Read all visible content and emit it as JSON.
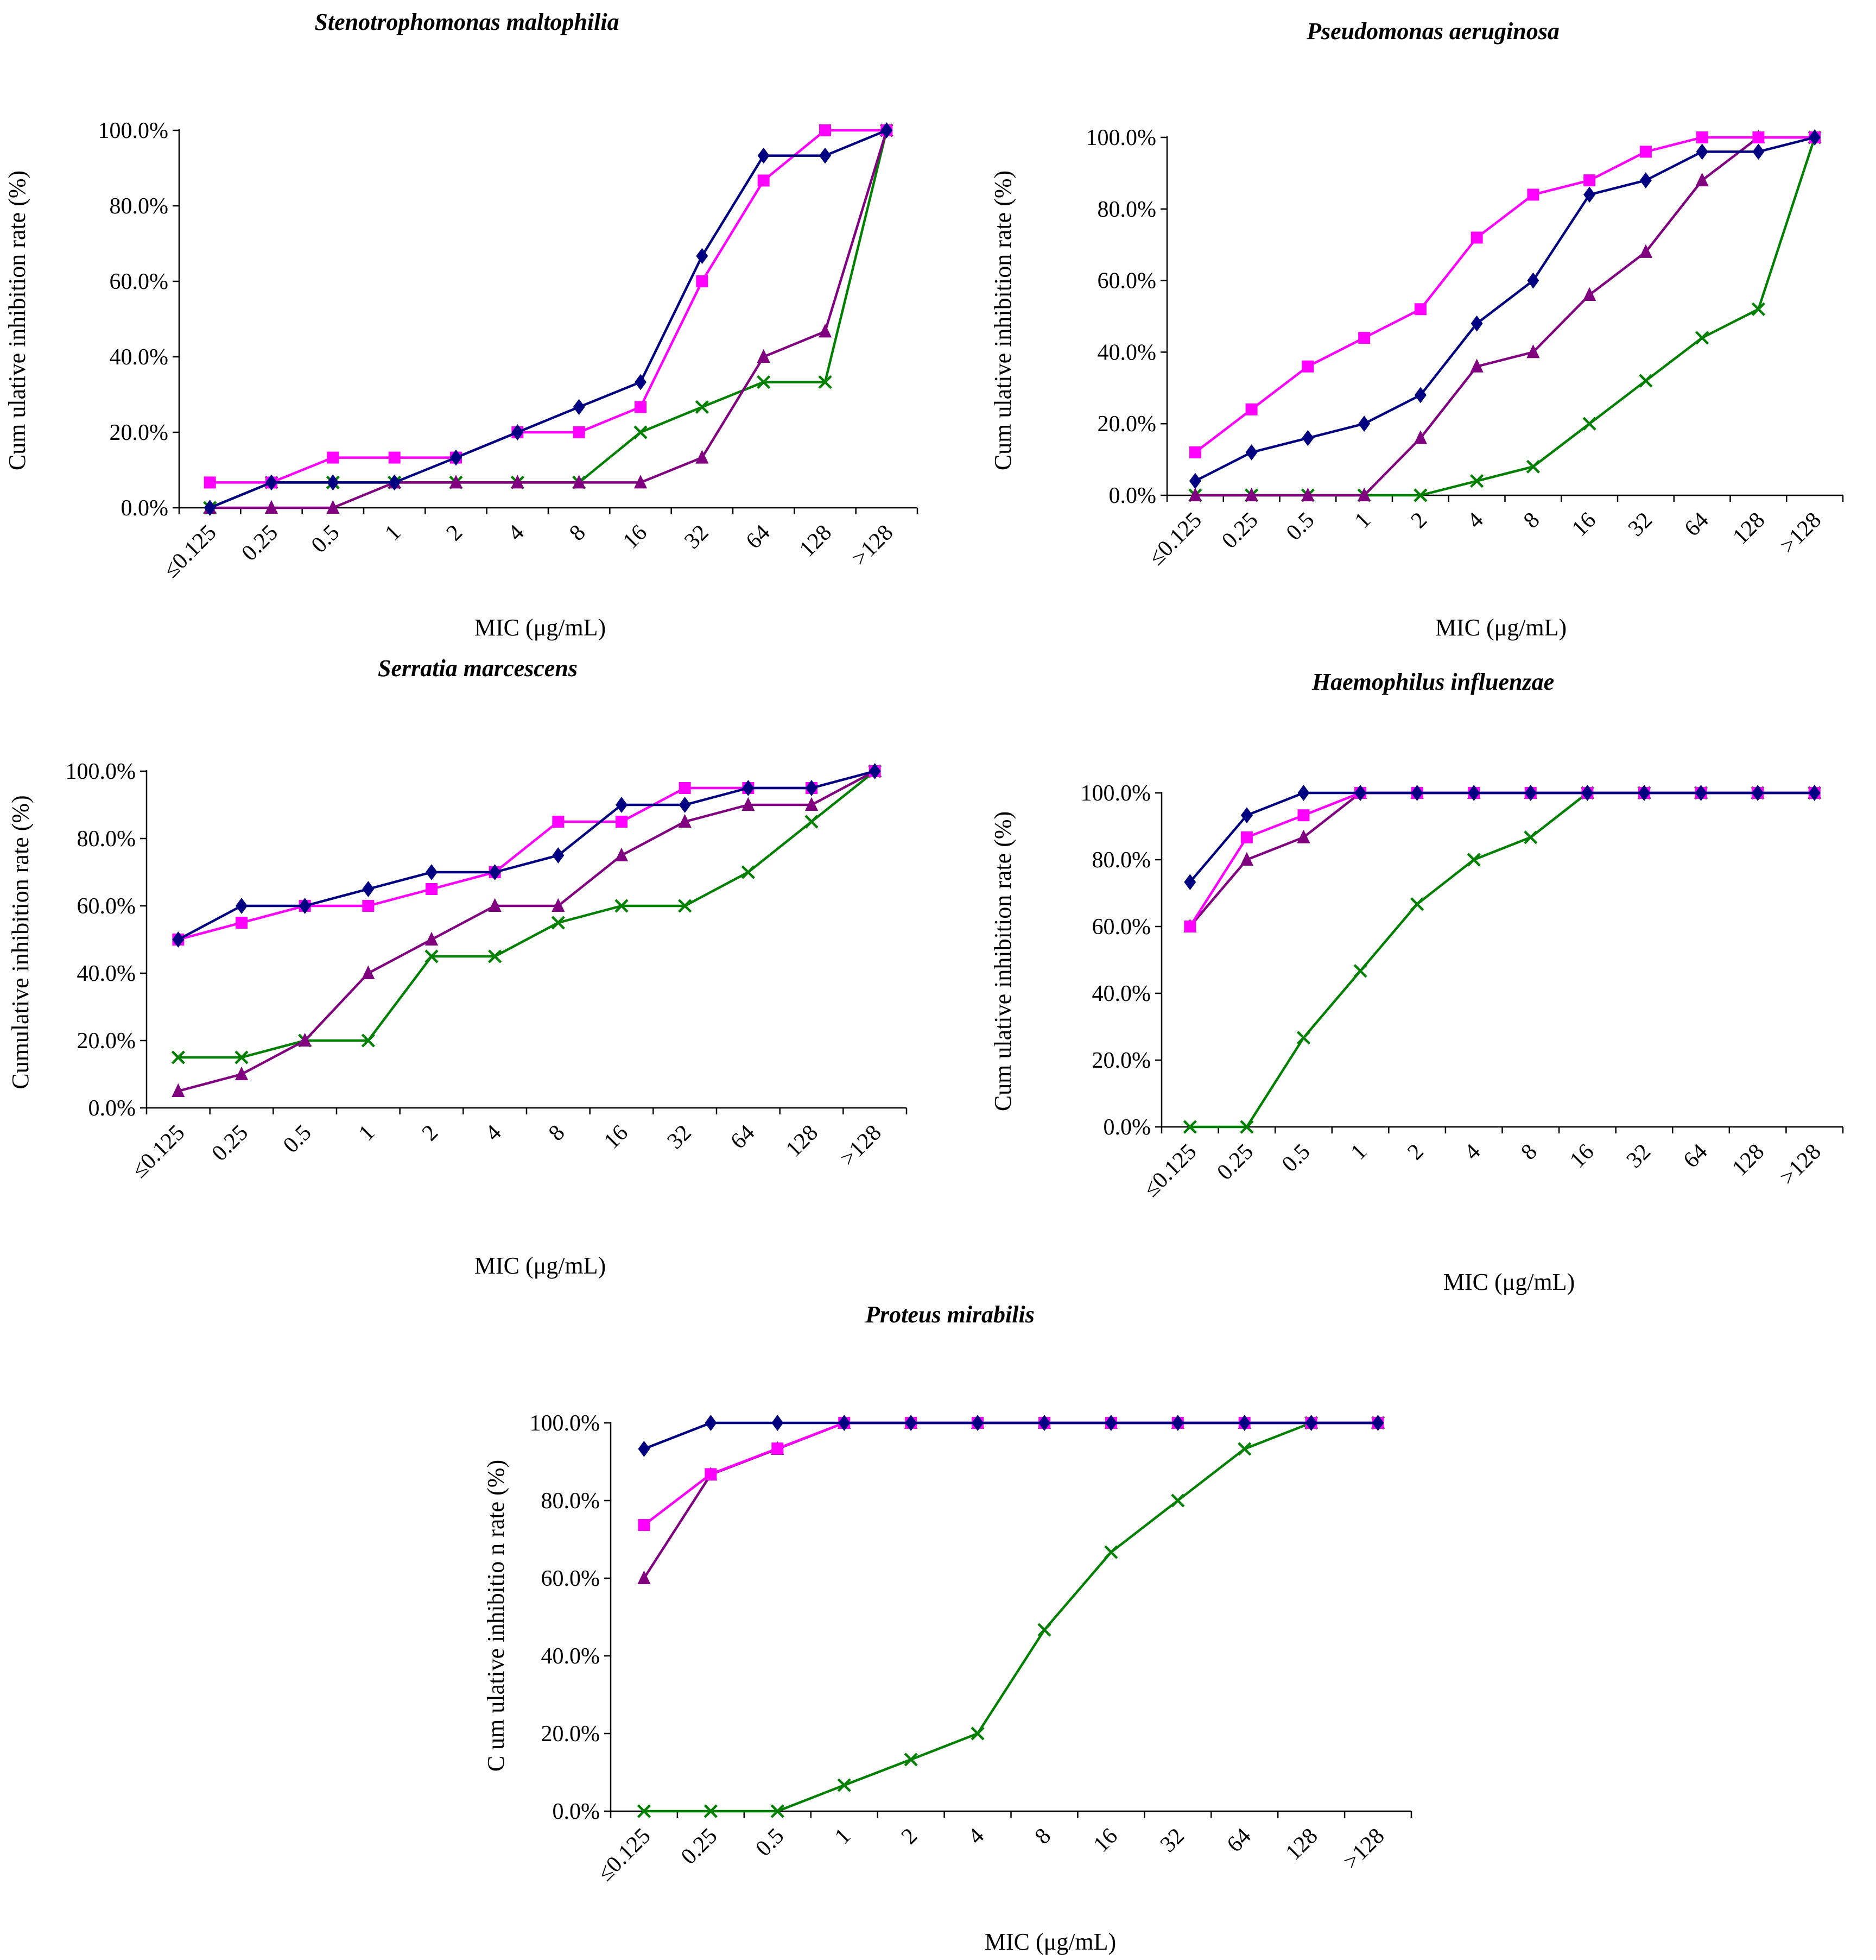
{
  "chart_data": [
    {
      "type": "line",
      "title": "Stenotrophomonas maltophilia",
      "xlabel": "MIC (μg/mL)",
      "ylabel": "Cum ulative inhibition rate (%)",
      "categories": [
        "≤0.125",
        "0.25",
        "0.5",
        "1",
        "2",
        "4",
        "8",
        "16",
        "32",
        "64",
        "128",
        ">128"
      ],
      "ylim": [
        0,
        100
      ],
      "yticks": [
        "0.0%",
        "20.0%",
        "40.0%",
        "60.0%",
        "80.0%",
        "100.0%"
      ],
      "series": [
        {
          "marker": "diamond",
          "color": "#000080",
          "values": [
            0,
            6.7,
            6.7,
            6.7,
            13.3,
            20,
            26.7,
            33.3,
            66.7,
            93.3,
            93.3,
            100
          ]
        },
        {
          "marker": "square",
          "color": "#ff00ff",
          "values": [
            6.7,
            6.7,
            13.3,
            13.3,
            13.3,
            20,
            20,
            26.7,
            60,
            86.7,
            100,
            100
          ]
        },
        {
          "marker": "triangle",
          "color": "#800080",
          "values": [
            0,
            0,
            0,
            6.7,
            6.7,
            6.7,
            6.7,
            6.7,
            13.3,
            40,
            46.7,
            100
          ]
        },
        {
          "marker": "x",
          "color": "#008000",
          "values": [
            0,
            6.7,
            6.7,
            6.7,
            6.7,
            6.7,
            6.7,
            20,
            26.7,
            33.3,
            33.3,
            100
          ]
        }
      ]
    },
    {
      "type": "line",
      "title": "Pseudomonas aeruginosa",
      "xlabel": "MIC (μg/mL)",
      "ylabel": "Cum ulative inhibition rate (%)",
      "categories": [
        "≤0.125",
        "0.25",
        "0.5",
        "1",
        "2",
        "4",
        "8",
        "16",
        "32",
        "64",
        "128",
        ">128"
      ],
      "ylim": [
        0,
        100
      ],
      "yticks": [
        "0.0%",
        "20.0%",
        "40.0%",
        "60.0%",
        "80.0%",
        "100.0%"
      ],
      "series": [
        {
          "marker": "diamond",
          "color": "#000080",
          "values": [
            4,
            12,
            16,
            20,
            28,
            48,
            60,
            84,
            88,
            96,
            96,
            100
          ]
        },
        {
          "marker": "square",
          "color": "#ff00ff",
          "values": [
            12,
            24,
            36,
            44,
            52,
            72,
            84,
            88,
            96,
            100,
            100,
            100
          ]
        },
        {
          "marker": "triangle",
          "color": "#800080",
          "values": [
            0,
            0,
            0,
            0,
            16,
            36,
            40,
            56,
            68,
            88,
            100,
            100
          ]
        },
        {
          "marker": "x",
          "color": "#008000",
          "values": [
            0,
            0,
            0,
            0,
            0,
            4,
            8,
            20,
            32,
            44,
            52,
            100
          ]
        }
      ]
    },
    {
      "type": "line",
      "title": "Serratia marcescens",
      "xlabel": "MIC (μg/mL)",
      "ylabel": "Cumulative inhibition rate (%)",
      "categories": [
        "≤0.125",
        "0.25",
        "0.5",
        "1",
        "2",
        "4",
        "8",
        "16",
        "32",
        "64",
        "128",
        ">128"
      ],
      "ylim": [
        0,
        100
      ],
      "yticks": [
        "0.0%",
        "20.0%",
        "40.0%",
        "60.0%",
        "80.0%",
        "100.0%"
      ],
      "series": [
        {
          "marker": "diamond",
          "color": "#000080",
          "values": [
            50,
            60,
            60,
            65,
            70,
            70,
            75,
            90,
            90,
            95,
            95,
            100
          ]
        },
        {
          "marker": "square",
          "color": "#ff00ff",
          "values": [
            50,
            55,
            60,
            60,
            65,
            70,
            85,
            85,
            95,
            95,
            95,
            100
          ]
        },
        {
          "marker": "triangle",
          "color": "#800080",
          "values": [
            5,
            10,
            20,
            40,
            50,
            60,
            60,
            75,
            85,
            90,
            90,
            100
          ]
        },
        {
          "marker": "x",
          "color": "#008000",
          "values": [
            15,
            15,
            20,
            20,
            45,
            45,
            55,
            60,
            60,
            70,
            85,
            100
          ]
        }
      ]
    },
    {
      "type": "line",
      "title": "Haemophilus influenzae",
      "xlabel": "MIC (μg/mL)",
      "ylabel": "Cum ulative inhibition rate (%)",
      "categories": [
        "≤0.125",
        "0.25",
        "0.5",
        "1",
        "2",
        "4",
        "8",
        "16",
        "32",
        "64",
        "128",
        ">128"
      ],
      "ylim": [
        0,
        100
      ],
      "yticks": [
        "0.0%",
        "20.0%",
        "40.0%",
        "60.0%",
        "80.0%",
        "100.0%"
      ],
      "series": [
        {
          "marker": "diamond",
          "color": "#000080",
          "values": [
            73.3,
            93.3,
            100,
            100,
            100,
            100,
            100,
            100,
            100,
            100,
            100,
            100
          ]
        },
        {
          "marker": "square",
          "color": "#ff00ff",
          "values": [
            60,
            86.7,
            93.3,
            100,
            100,
            100,
            100,
            100,
            100,
            100,
            100,
            100
          ]
        },
        {
          "marker": "triangle",
          "color": "#800080",
          "values": [
            60,
            80,
            86.7,
            100,
            100,
            100,
            100,
            100,
            100,
            100,
            100,
            100
          ]
        },
        {
          "marker": "x",
          "color": "#008000",
          "values": [
            0,
            0,
            26.7,
            46.7,
            66.7,
            80,
            86.7,
            100,
            100,
            100,
            100,
            100
          ]
        }
      ]
    },
    {
      "type": "line",
      "title": "Proteus mirabilis",
      "xlabel": "MIC (μg/mL)",
      "ylabel": "C um ulative inhibitio n rate (%)",
      "categories": [
        "≤0.125",
        "0.25",
        "0.5",
        "1",
        "2",
        "4",
        "8",
        "16",
        "32",
        "64",
        "128",
        ">128"
      ],
      "ylim": [
        0,
        100
      ],
      "yticks": [
        "0.0%",
        "20.0%",
        "40.0%",
        "60.0%",
        "80.0%",
        "100.0%"
      ],
      "series": [
        {
          "marker": "diamond",
          "color": "#000080",
          "values": [
            93.3,
            100,
            100,
            100,
            100,
            100,
            100,
            100,
            100,
            100,
            100,
            100
          ]
        },
        {
          "marker": "square",
          "color": "#ff00ff",
          "values": [
            73.7,
            86.8,
            93.4,
            100,
            100,
            100,
            100,
            100,
            100,
            100,
            100,
            100
          ]
        },
        {
          "marker": "triangle",
          "color": "#800080",
          "values": [
            60,
            86.7,
            93.3,
            100,
            100,
            100,
            100,
            100,
            100,
            100,
            100,
            100
          ]
        },
        {
          "marker": "x",
          "color": "#008000",
          "values": [
            0,
            0,
            0,
            6.7,
            13.3,
            20,
            46.7,
            66.7,
            80,
            93.3,
            100,
            100
          ]
        }
      ]
    }
  ]
}
